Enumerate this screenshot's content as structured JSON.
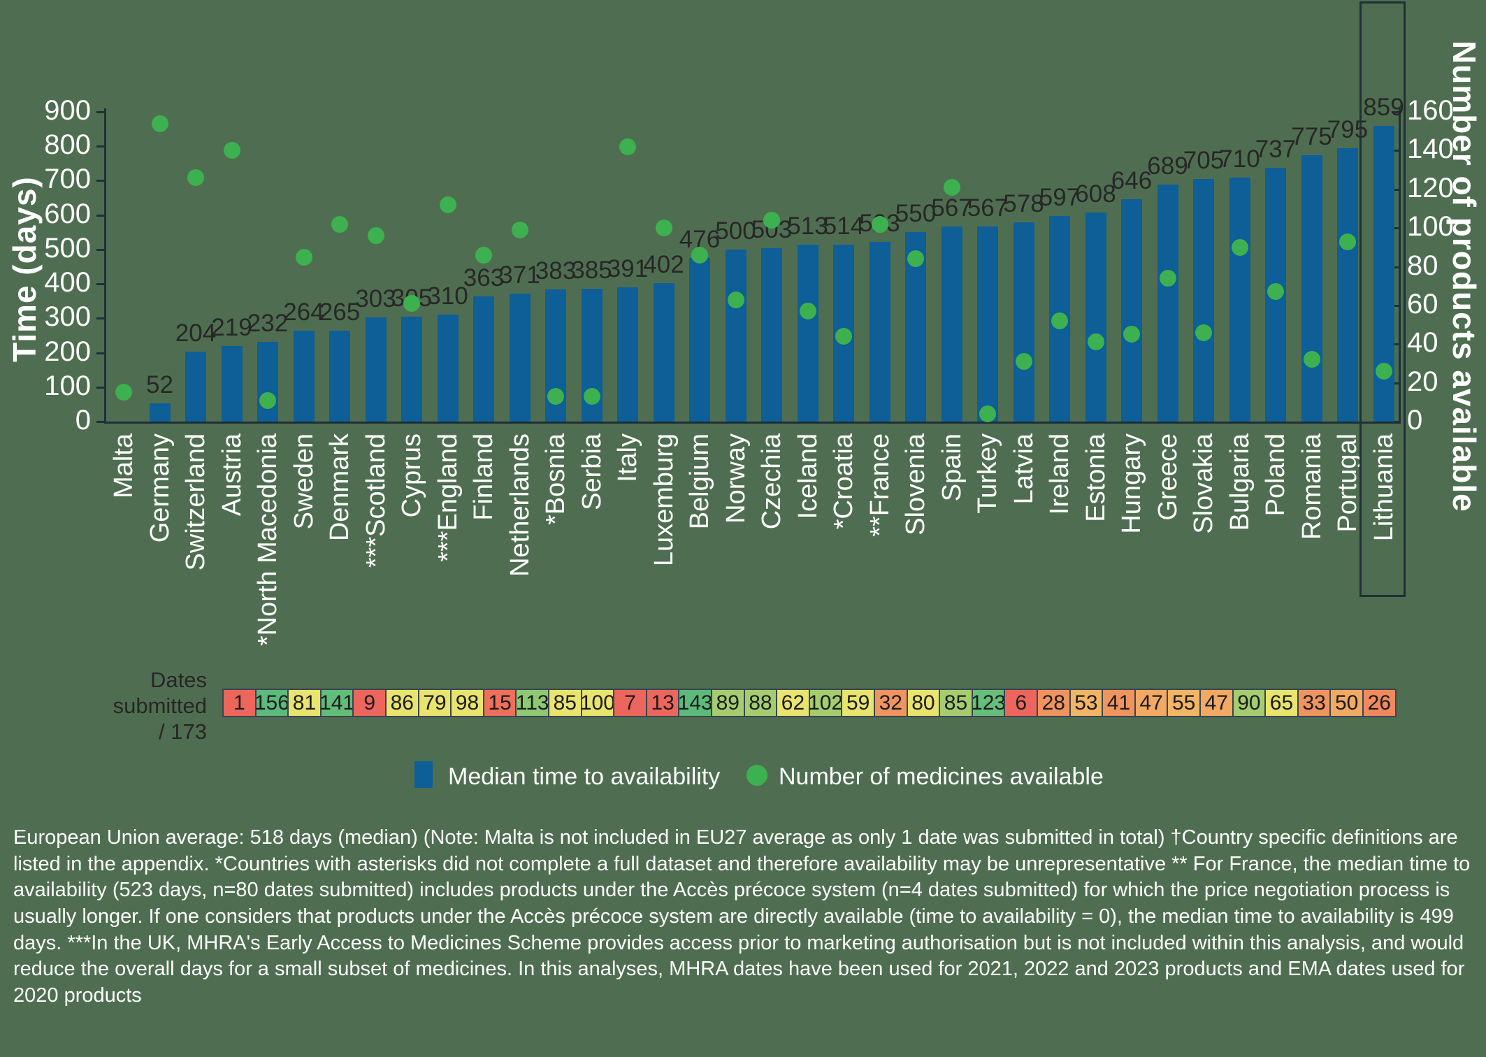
{
  "colors": {
    "background": "#4f6e51",
    "bar": "#0e5e97",
    "dot": "#3db04f",
    "axis_line": "#1f3038",
    "bar_label_text": "#272727",
    "cell_border": "#39464f",
    "white_text": "#ffffff"
  },
  "chart_data": {
    "type": "bar",
    "dual_axis": true,
    "title": "",
    "categories": [
      "Malta",
      "Germany",
      "Switzerland",
      "Austria",
      "*North Macedonia",
      "Sweden",
      "Denmark",
      "***Scotland",
      "Cyprus",
      "***England",
      "Finland",
      "Netherlands",
      "*Bosnia",
      "Serbia",
      "Italy",
      "Luxemburg",
      "Belgium",
      "Norway",
      "Czechia",
      "Iceland",
      "*Croatia",
      "**France",
      "Slovenia",
      "Spain",
      "Turkey",
      "Latvia",
      "Ireland",
      "Estonia",
      "Hungary",
      "Greece",
      "Slovakia",
      "Bulgaria",
      "Poland",
      "Romania",
      "Portugal",
      "Lithuania"
    ],
    "series": [
      {
        "name": "Median time to availability",
        "type": "bar",
        "axis": "left",
        "color": "#0e5e97",
        "values": [
          null,
          52,
          204,
          219,
          232,
          264,
          265,
          303,
          305,
          310,
          363,
          371,
          383,
          385,
          391,
          402,
          476,
          500,
          503,
          513,
          514,
          523,
          550,
          567,
          567,
          578,
          597,
          608,
          646,
          689,
          705,
          710,
          737,
          775,
          795,
          859
        ]
      },
      {
        "name": "Number of medicines available",
        "type": "scatter",
        "axis": "right",
        "color": "#3db04f",
        "values": [
          15,
          154,
          126,
          140,
          11,
          85,
          102,
          96,
          61,
          112,
          86,
          99,
          13,
          13,
          142,
          100,
          86,
          63,
          104,
          57,
          44,
          102,
          84,
          121,
          4,
          31,
          52,
          41,
          45,
          74,
          46,
          90,
          67,
          32,
          93,
          26
        ]
      }
    ],
    "left_axis": {
      "label": "Time (days)",
      "min": 0,
      "max": 900,
      "ticks": [
        0,
        100,
        200,
        300,
        400,
        500,
        600,
        700,
        800,
        900
      ]
    },
    "right_axis": {
      "label": "Number of products available",
      "min": 0,
      "max": 160,
      "ticks": [
        0,
        20,
        40,
        60,
        80,
        100,
        120,
        140,
        160
      ]
    },
    "highlight_box_country": "Lithuania",
    "legend_position": "bottom",
    "grid": false
  },
  "dates_row": {
    "label": "Dates\nsubmitted\n/ 173",
    "cells": [
      {
        "value": 1,
        "color": "#ec665d"
      },
      {
        "value": 156,
        "color": "#5cba7c"
      },
      {
        "value": 81,
        "color": "#e9e46e"
      },
      {
        "value": 141,
        "color": "#63bd7a"
      },
      {
        "value": 9,
        "color": "#ec665d"
      },
      {
        "value": 86,
        "color": "#e9e46e"
      },
      {
        "value": 79,
        "color": "#e9e46e"
      },
      {
        "value": 98,
        "color": "#e9e46e"
      },
      {
        "value": 15,
        "color": "#ee6f5b"
      },
      {
        "value": 113,
        "color": "#8ec873"
      },
      {
        "value": 85,
        "color": "#e9e46e"
      },
      {
        "value": 100,
        "color": "#e9e46e"
      },
      {
        "value": 7,
        "color": "#ec665d"
      },
      {
        "value": 13,
        "color": "#ec665d"
      },
      {
        "value": 143,
        "color": "#5cba7c"
      },
      {
        "value": 89,
        "color": "#a5cd6f"
      },
      {
        "value": 88,
        "color": "#a5cd6f"
      },
      {
        "value": 62,
        "color": "#e9e46e"
      },
      {
        "value": 102,
        "color": "#a5cd6f"
      },
      {
        "value": 59,
        "color": "#e9e46e"
      },
      {
        "value": 32,
        "color": "#f0945f"
      },
      {
        "value": 80,
        "color": "#e9e46e"
      },
      {
        "value": 85,
        "color": "#a5cd6f"
      },
      {
        "value": 123,
        "color": "#66be7b"
      },
      {
        "value": 6,
        "color": "#ec665d"
      },
      {
        "value": 28,
        "color": "#f0945f"
      },
      {
        "value": 53,
        "color": "#f2b566"
      },
      {
        "value": 41,
        "color": "#f0945f"
      },
      {
        "value": 47,
        "color": "#f2a963"
      },
      {
        "value": 55,
        "color": "#f2b566"
      },
      {
        "value": 47,
        "color": "#f2a963"
      },
      {
        "value": 90,
        "color": "#a5cd6f"
      },
      {
        "value": 65,
        "color": "#e9e46e"
      },
      {
        "value": 33,
        "color": "#f0945f"
      },
      {
        "value": 50,
        "color": "#f2a963"
      },
      {
        "value": 26,
        "color": "#ef8a5e"
      }
    ]
  },
  "legend": {
    "items": [
      {
        "swatch": "square",
        "color": "#0e5e97",
        "label": "Median time to availability"
      },
      {
        "swatch": "circle",
        "color": "#3db04f",
        "label": "Number of medicines available"
      }
    ]
  },
  "footnote": "European Union average: 518 days (median) (Note: Malta is not included in EU27 average as only 1 date was submitted in total) †Country specific definitions are listed in the appendix. *Countries with asterisks did not complete a full dataset and therefore availability may be unrepresentative ** For France, the median time to availability (523 days, n=80 dates submitted) includes products under the Accès précoce system (n=4 dates submitted) for which the price negotiation process is usually longer. If one considers that products under the Accès précoce system are directly available (time to availability = 0), the median time to availability is 499 days. ***In the UK, MHRA's Early Access to Medicines Scheme provides access prior to marketing authorisation but is not included within this analysis, and would reduce the overall days for a small subset of medicines. In this analyses, MHRA dates have been used for 2021, 2022 and 2023 products and EMA dates used for 2020 products"
}
